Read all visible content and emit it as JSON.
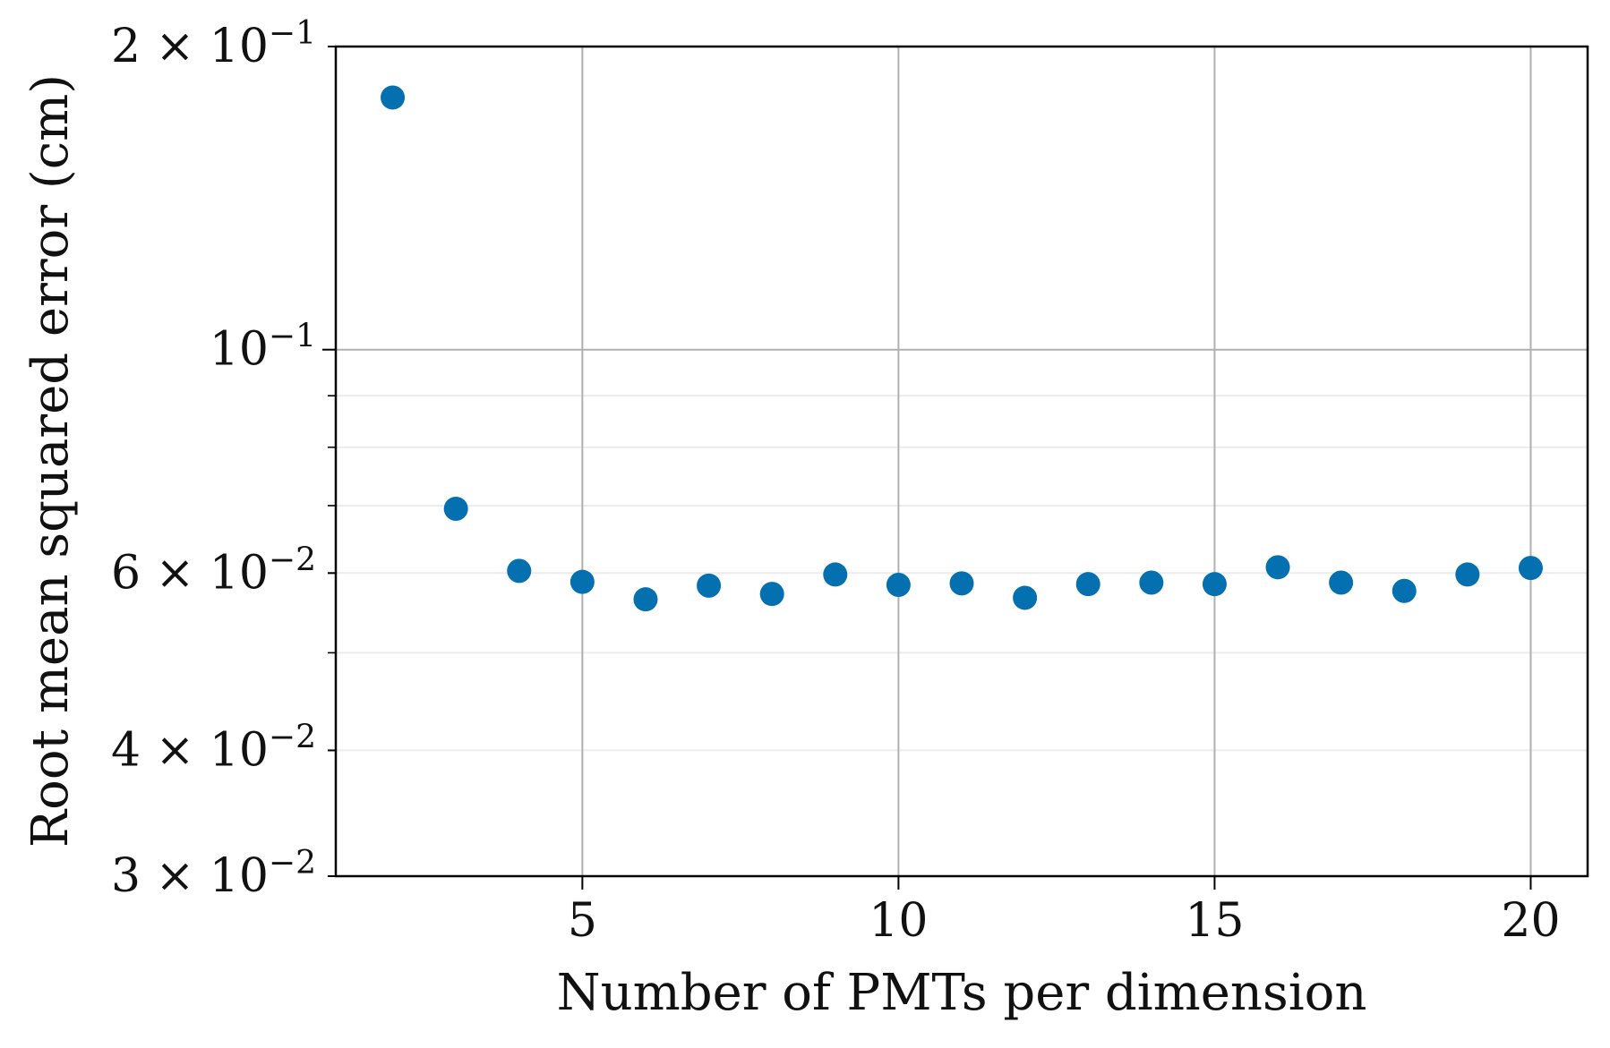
{
  "chart_data": {
    "type": "scatter",
    "xlabel": "Number of PMTs per dimension",
    "ylabel": "Root mean squared error (cm)",
    "xlim": [
      1.1,
      20.9
    ],
    "ylim": [
      0.03,
      0.2
    ],
    "yscale": "log",
    "grid": true,
    "marker_color": "#0570b0",
    "x_ticks": [
      {
        "value": 5,
        "label": "5"
      },
      {
        "value": 10,
        "label": "10"
      },
      {
        "value": 15,
        "label": "15"
      },
      {
        "value": 20,
        "label": "20"
      }
    ],
    "y_ticks": [
      {
        "value": 0.2,
        "mantissa": "2",
        "exponent": "−1"
      },
      {
        "value": 0.1,
        "mantissa": "",
        "exponent": "−1"
      },
      {
        "value": 0.06,
        "mantissa": "6",
        "exponent": "−2"
      },
      {
        "value": 0.04,
        "mantissa": "4",
        "exponent": "−2"
      },
      {
        "value": 0.03,
        "mantissa": "3",
        "exponent": "−2"
      }
    ],
    "y_minor_ticks": [
      0.05,
      0.07,
      0.08,
      0.09
    ],
    "points": [
      {
        "x": 2,
        "y": 0.178
      },
      {
        "x": 3,
        "y": 0.0695
      },
      {
        "x": 4,
        "y": 0.0603
      },
      {
        "x": 5,
        "y": 0.0588
      },
      {
        "x": 6,
        "y": 0.0565
      },
      {
        "x": 7,
        "y": 0.0583
      },
      {
        "x": 8,
        "y": 0.0572
      },
      {
        "x": 9,
        "y": 0.0598
      },
      {
        "x": 10,
        "y": 0.0584
      },
      {
        "x": 11,
        "y": 0.0586
      },
      {
        "x": 12,
        "y": 0.0567
      },
      {
        "x": 13,
        "y": 0.0585
      },
      {
        "x": 14,
        "y": 0.0587
      },
      {
        "x": 15,
        "y": 0.0585
      },
      {
        "x": 16,
        "y": 0.0608
      },
      {
        "x": 17,
        "y": 0.0587
      },
      {
        "x": 18,
        "y": 0.0576
      },
      {
        "x": 19,
        "y": 0.0598
      },
      {
        "x": 20,
        "y": 0.0607
      }
    ]
  }
}
